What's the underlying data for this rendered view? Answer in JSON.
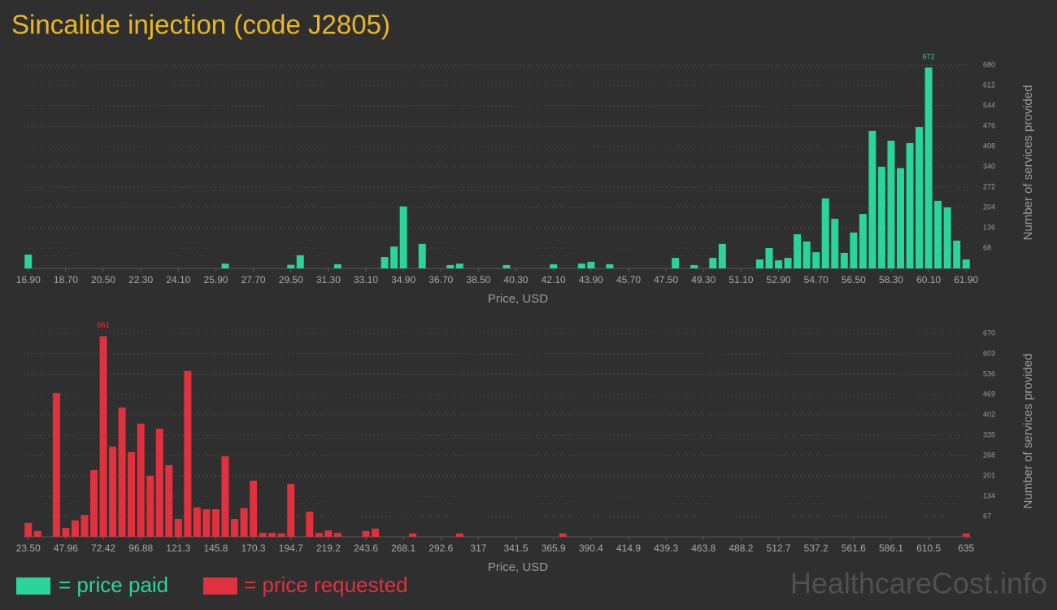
{
  "title": "Sincalide injection (code J2805)",
  "watermark": "HealthcareCost.info",
  "chart_data": [
    {
      "type": "bar",
      "x_label": "Price, USD",
      "y_label": "Number of services provided",
      "categories": [
        "16.90",
        null,
        null,
        null,
        "18.70",
        null,
        null,
        null,
        "20.50",
        null,
        null,
        null,
        "22.30",
        null,
        null,
        null,
        "24.10",
        null,
        null,
        null,
        "25.90",
        null,
        null,
        null,
        "27.70",
        null,
        null,
        null,
        "29.50",
        null,
        null,
        null,
        "31.30",
        null,
        null,
        null,
        "33.10",
        null,
        null,
        null,
        "34.90",
        null,
        null,
        null,
        "36.70",
        null,
        null,
        null,
        "38.50",
        null,
        null,
        null,
        "40.30",
        null,
        null,
        null,
        "42.10",
        null,
        null,
        null,
        "43.90",
        null,
        null,
        null,
        "45.70",
        null,
        null,
        null,
        "47.50",
        null,
        null,
        null,
        "49.30",
        null,
        null,
        null,
        "51.10",
        null,
        null,
        null,
        "52.90",
        null,
        null,
        null,
        "54.70",
        null,
        null,
        null,
        "56.50",
        null,
        null,
        null,
        "58.30",
        null,
        null,
        null,
        "60.10",
        null,
        null,
        null,
        "61.90"
      ],
      "series": [
        {
          "name": "= price paid",
          "color": "#2ad49a",
          "values": [
            46,
            0,
            0,
            0,
            0,
            0,
            0,
            0,
            0,
            0,
            0,
            0,
            0,
            0,
            0,
            0,
            0,
            0,
            0,
            0,
            0,
            16,
            0,
            0,
            0,
            0,
            0,
            0,
            12,
            44,
            0,
            0,
            0,
            14,
            0,
            0,
            0,
            0,
            38,
            73,
            207,
            0,
            82,
            0,
            0,
            11,
            16,
            0,
            0,
            0,
            0,
            11,
            0,
            0,
            0,
            0,
            14,
            0,
            0,
            16,
            22,
            0,
            14,
            0,
            0,
            0,
            0,
            0,
            0,
            35,
            0,
            11,
            0,
            35,
            82,
            0,
            0,
            0,
            30,
            68,
            27,
            35,
            114,
            90,
            54,
            234,
            166,
            52,
            120,
            182,
            460,
            340,
            427,
            335,
            419,
            473,
            672,
            226,
            204,
            93,
            30
          ]
        }
      ],
      "ylim": [
        0,
        680
      ],
      "yticks": [
        68,
        136,
        204,
        272,
        340,
        408,
        476,
        544,
        612,
        680
      ],
      "grid": true
    },
    {
      "type": "bar",
      "x_label": "Price, USD",
      "y_label": "Number of services provided",
      "categories": [
        "23.50",
        null,
        null,
        null,
        "47.96",
        null,
        null,
        null,
        "72.42",
        null,
        null,
        null,
        "96.88",
        null,
        null,
        null,
        "121.3",
        null,
        null,
        null,
        "145.8",
        null,
        null,
        null,
        "170.3",
        null,
        null,
        null,
        "194.7",
        null,
        null,
        null,
        "219.2",
        null,
        null,
        null,
        "243.6",
        null,
        null,
        null,
        "268.1",
        null,
        null,
        null,
        "292.6",
        null,
        null,
        null,
        "317",
        null,
        null,
        null,
        "341.5",
        null,
        null,
        null,
        "365.9",
        null,
        null,
        null,
        "390.4",
        null,
        null,
        null,
        "414.9",
        null,
        null,
        null,
        "439.3",
        null,
        null,
        null,
        "463.8",
        null,
        null,
        null,
        "488.2",
        null,
        null,
        null,
        "512.7",
        null,
        null,
        null,
        "537.2",
        null,
        null,
        null,
        "561.6",
        null,
        null,
        null,
        "586.1",
        null,
        null,
        null,
        "610.5",
        null,
        null,
        null,
        "635"
      ],
      "series": [
        {
          "name": "= price requested",
          "color": "#e0313f",
          "values": [
            46,
            19,
            0,
            474,
            29,
            54,
            72,
            220,
            661,
            297,
            426,
            279,
            373,
            201,
            356,
            236,
            59,
            547,
            97,
            91,
            91,
            265,
            59,
            94,
            185,
            13,
            13,
            11,
            174,
            0,
            83,
            13,
            21,
            13,
            0,
            0,
            19,
            27,
            0,
            0,
            0,
            11,
            0,
            0,
            0,
            0,
            11,
            0,
            0,
            0,
            0,
            0,
            0,
            0,
            0,
            0,
            0,
            11,
            0,
            0,
            0,
            0,
            0,
            0,
            0,
            0,
            0,
            0,
            0,
            0,
            0,
            0,
            0,
            0,
            0,
            0,
            0,
            0,
            0,
            0,
            0,
            0,
            0,
            0,
            0,
            0,
            0,
            0,
            0,
            0,
            0,
            0,
            0,
            0,
            0,
            0,
            0,
            0,
            0,
            0,
            11
          ]
        }
      ],
      "ylim": [
        0,
        670
      ],
      "yticks": [
        67,
        134,
        201,
        268,
        335,
        402,
        469,
        536,
        603,
        670
      ],
      "grid": true
    }
  ]
}
